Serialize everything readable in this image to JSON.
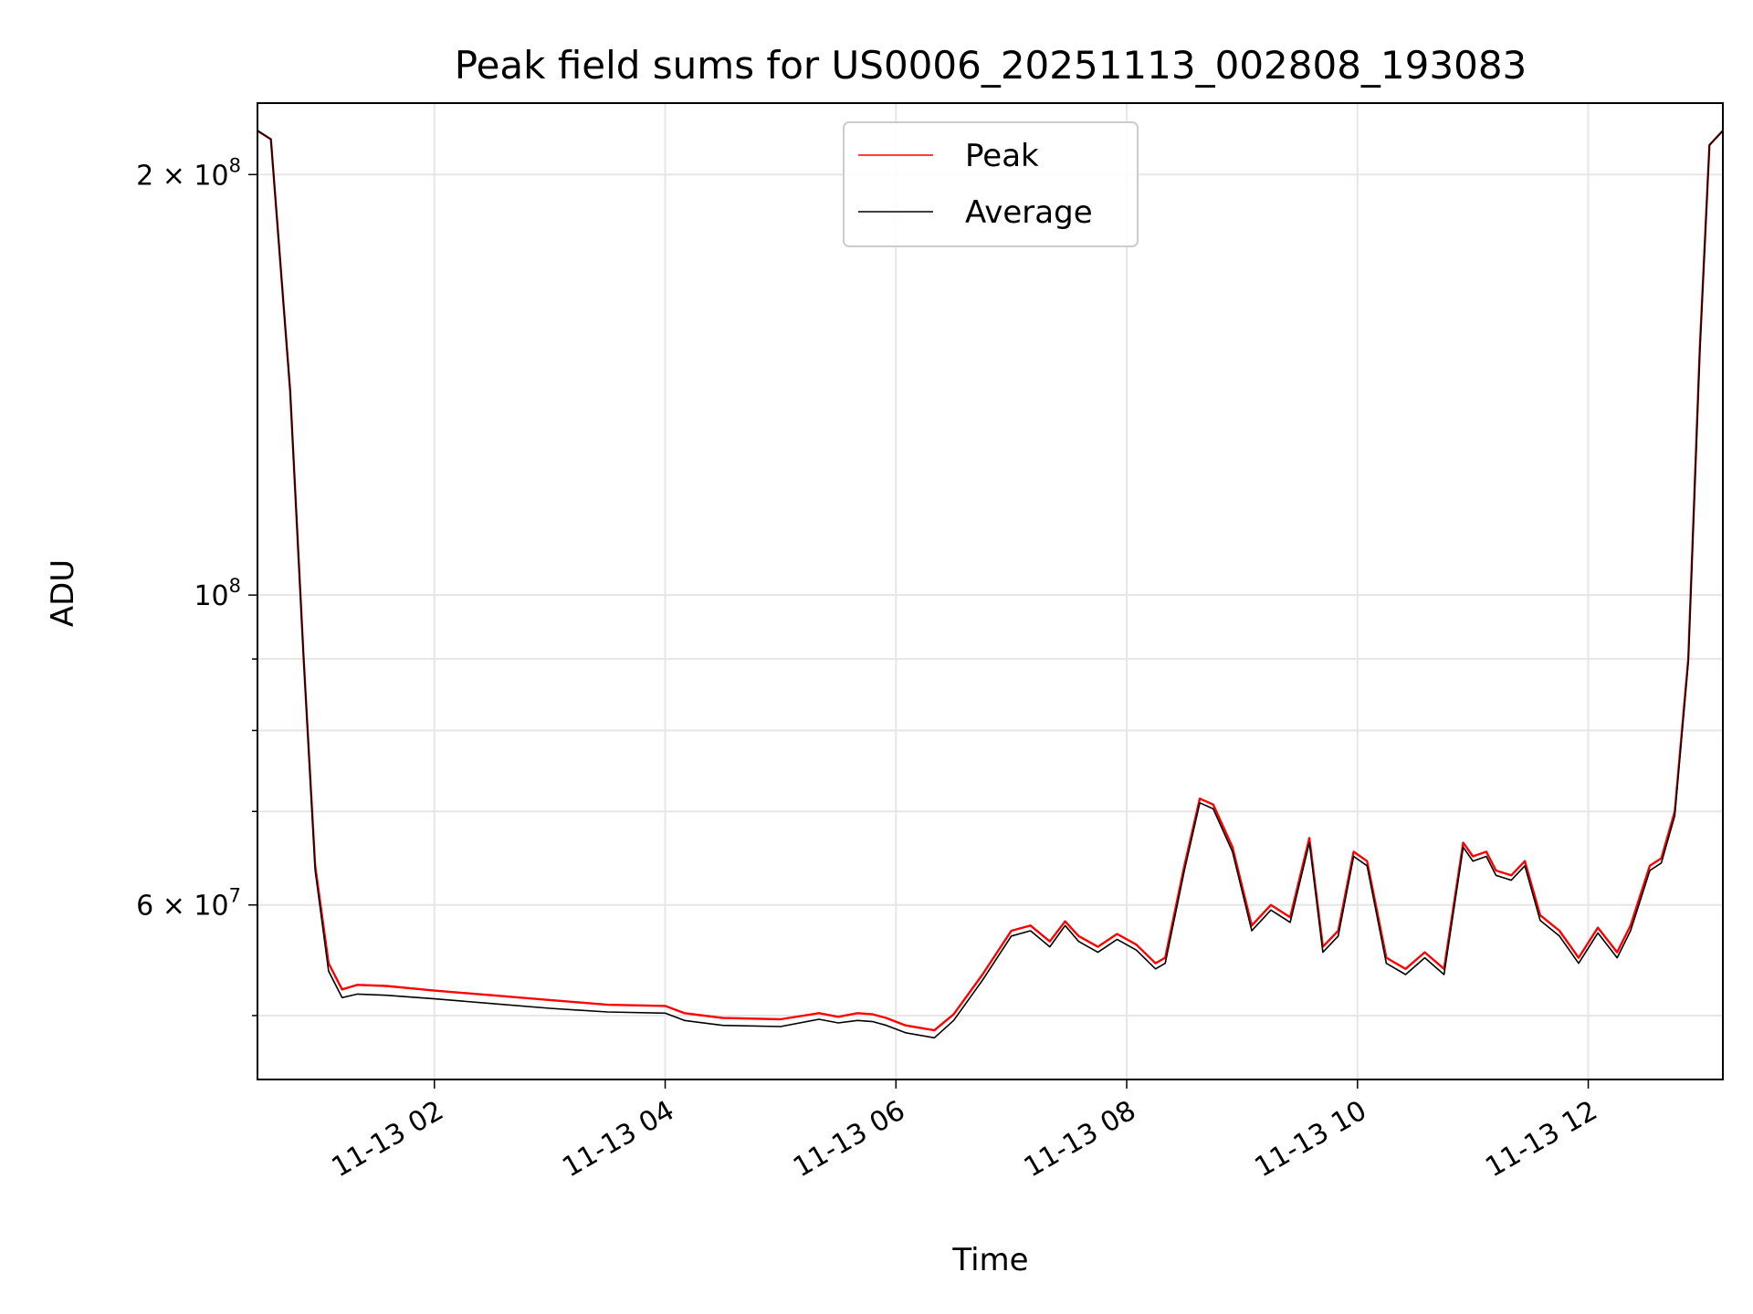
{
  "chart_data": {
    "type": "line",
    "title": "Peak field sums for US0006_20251113_002808_193083",
    "xlabel": "Time",
    "ylabel": "ADU",
    "x_range": [
      "2025-11-13 00:28",
      "2025-11-13 13:10"
    ],
    "ylim": [
      45000000,
      225000000
    ],
    "y_scale": "log",
    "grid": true,
    "legend_position": "top-center",
    "x_ticks": [
      {
        "value": "2025-11-13 02:00",
        "label": "11-13 02"
      },
      {
        "value": "2025-11-13 04:00",
        "label": "11-13 04"
      },
      {
        "value": "2025-11-13 06:00",
        "label": "11-13 06"
      },
      {
        "value": "2025-11-13 08:00",
        "label": "11-13 08"
      },
      {
        "value": "2025-11-13 10:00",
        "label": "11-13 10"
      },
      {
        "value": "2025-11-13 12:00",
        "label": "11-13 12"
      }
    ],
    "y_ticks": [
      {
        "value": 60000000,
        "mantissa": "6",
        "exponent": "7"
      },
      {
        "value": 100000000,
        "mantissa": "",
        "exponent": "8"
      },
      {
        "value": 200000000,
        "mantissa": "2",
        "exponent": "8"
      }
    ],
    "y_minor_ticks": [
      50000000,
      70000000,
      80000000,
      90000000
    ],
    "series": [
      {
        "name": "Peak",
        "color": "#ff0000",
        "x": [
          "2025-11-13 00:28",
          "2025-11-13 00:35",
          "2025-11-13 00:45",
          "2025-11-13 00:52",
          "2025-11-13 00:58",
          "2025-11-13 01:05",
          "2025-11-13 01:12",
          "2025-11-13 01:20",
          "2025-11-13 01:35",
          "2025-11-13 02:00",
          "2025-11-13 02:30",
          "2025-11-13 03:00",
          "2025-11-13 03:30",
          "2025-11-13 04:00",
          "2025-11-13 04:10",
          "2025-11-13 04:30",
          "2025-11-13 05:00",
          "2025-11-13 05:20",
          "2025-11-13 05:30",
          "2025-11-13 05:40",
          "2025-11-13 05:48",
          "2025-11-13 05:55",
          "2025-11-13 06:05",
          "2025-11-13 06:20",
          "2025-11-13 06:30",
          "2025-11-13 06:45",
          "2025-11-13 07:00",
          "2025-11-13 07:10",
          "2025-11-13 07:20",
          "2025-11-13 07:28",
          "2025-11-13 07:35",
          "2025-11-13 07:45",
          "2025-11-13 07:55",
          "2025-11-13 08:05",
          "2025-11-13 08:15",
          "2025-11-13 08:20",
          "2025-11-13 08:30",
          "2025-11-13 08:38",
          "2025-11-13 08:45",
          "2025-11-13 08:55",
          "2025-11-13 09:05",
          "2025-11-13 09:15",
          "2025-11-13 09:25",
          "2025-11-13 09:35",
          "2025-11-13 09:42",
          "2025-11-13 09:50",
          "2025-11-13 09:58",
          "2025-11-13 10:05",
          "2025-11-13 10:15",
          "2025-11-13 10:25",
          "2025-11-13 10:35",
          "2025-11-13 10:45",
          "2025-11-13 10:55",
          "2025-11-13 11:00",
          "2025-11-13 11:07",
          "2025-11-13 11:12",
          "2025-11-13 11:20",
          "2025-11-13 11:27",
          "2025-11-13 11:35",
          "2025-11-13 11:45",
          "2025-11-13 11:55",
          "2025-11-13 12:05",
          "2025-11-13 12:15",
          "2025-11-13 12:22",
          "2025-11-13 12:32",
          "2025-11-13 12:38",
          "2025-11-13 12:45",
          "2025-11-13 12:52",
          "2025-11-13 12:58",
          "2025-11-13 13:03",
          "2025-11-13 13:10"
        ],
        "values": [
          215000000,
          212000000,
          140000000,
          90000000,
          64000000,
          54500000,
          52200000,
          52600000,
          52500000,
          52100000,
          51700000,
          51300000,
          50900000,
          50800000,
          50200000,
          49800000,
          49700000,
          50200000,
          49900000,
          50200000,
          50100000,
          49800000,
          49200000,
          48800000,
          50100000,
          53500000,
          57500000,
          58000000,
          56500000,
          58400000,
          57000000,
          56000000,
          57200000,
          56200000,
          54500000,
          55000000,
          64000000,
          71500000,
          70800000,
          66000000,
          58000000,
          60000000,
          58800000,
          67000000,
          56000000,
          57500000,
          65500000,
          64500000,
          55000000,
          54000000,
          55500000,
          54000000,
          66500000,
          65000000,
          65500000,
          63500000,
          63000000,
          64500000,
          59000000,
          57500000,
          55000000,
          57800000,
          55500000,
          58000000,
          64000000,
          64800000,
          70000000,
          90000000,
          150000000,
          210000000,
          215000000
        ]
      },
      {
        "name": "Average",
        "color": "#000000",
        "x": [
          "2025-11-13 00:28",
          "2025-11-13 00:35",
          "2025-11-13 00:45",
          "2025-11-13 00:52",
          "2025-11-13 00:58",
          "2025-11-13 01:05",
          "2025-11-13 01:12",
          "2025-11-13 01:20",
          "2025-11-13 01:35",
          "2025-11-13 02:00",
          "2025-11-13 02:30",
          "2025-11-13 03:00",
          "2025-11-13 03:30",
          "2025-11-13 04:00",
          "2025-11-13 04:10",
          "2025-11-13 04:30",
          "2025-11-13 05:00",
          "2025-11-13 05:20",
          "2025-11-13 05:30",
          "2025-11-13 05:40",
          "2025-11-13 05:48",
          "2025-11-13 05:55",
          "2025-11-13 06:05",
          "2025-11-13 06:20",
          "2025-11-13 06:30",
          "2025-11-13 06:45",
          "2025-11-13 07:00",
          "2025-11-13 07:10",
          "2025-11-13 07:20",
          "2025-11-13 07:28",
          "2025-11-13 07:35",
          "2025-11-13 07:45",
          "2025-11-13 07:55",
          "2025-11-13 08:05",
          "2025-11-13 08:15",
          "2025-11-13 08:20",
          "2025-11-13 08:30",
          "2025-11-13 08:38",
          "2025-11-13 08:45",
          "2025-11-13 08:55",
          "2025-11-13 09:05",
          "2025-11-13 09:15",
          "2025-11-13 09:25",
          "2025-11-13 09:35",
          "2025-11-13 09:42",
          "2025-11-13 09:50",
          "2025-11-13 09:58",
          "2025-11-13 10:05",
          "2025-11-13 10:15",
          "2025-11-13 10:25",
          "2025-11-13 10:35",
          "2025-11-13 10:45",
          "2025-11-13 10:55",
          "2025-11-13 11:00",
          "2025-11-13 11:07",
          "2025-11-13 11:12",
          "2025-11-13 11:20",
          "2025-11-13 11:27",
          "2025-11-13 11:35",
          "2025-11-13 11:45",
          "2025-11-13 11:55",
          "2025-11-13 12:05",
          "2025-11-13 12:15",
          "2025-11-13 12:22",
          "2025-11-13 12:32",
          "2025-11-13 12:38",
          "2025-11-13 12:45",
          "2025-11-13 12:52",
          "2025-11-13 12:58",
          "2025-11-13 13:03",
          "2025-11-13 13:10"
        ],
        "values": [
          215000000,
          212000000,
          140000000,
          90000000,
          63500000,
          53800000,
          51500000,
          51800000,
          51700000,
          51400000,
          51000000,
          50600000,
          50300000,
          50200000,
          49600000,
          49200000,
          49100000,
          49700000,
          49400000,
          49600000,
          49500000,
          49200000,
          48600000,
          48200000,
          49600000,
          53000000,
          57000000,
          57500000,
          56000000,
          58000000,
          56500000,
          55500000,
          56700000,
          55700000,
          54000000,
          54500000,
          63500000,
          71000000,
          70300000,
          65500000,
          57500000,
          59500000,
          58300000,
          66500000,
          55500000,
          57000000,
          65000000,
          64000000,
          54500000,
          53500000,
          55000000,
          53500000,
          66000000,
          64500000,
          65000000,
          63000000,
          62500000,
          64000000,
          58500000,
          57000000,
          54500000,
          57300000,
          55000000,
          57500000,
          63500000,
          64300000,
          69500000,
          89500000,
          149000000,
          210000000,
          215000000
        ]
      }
    ]
  }
}
